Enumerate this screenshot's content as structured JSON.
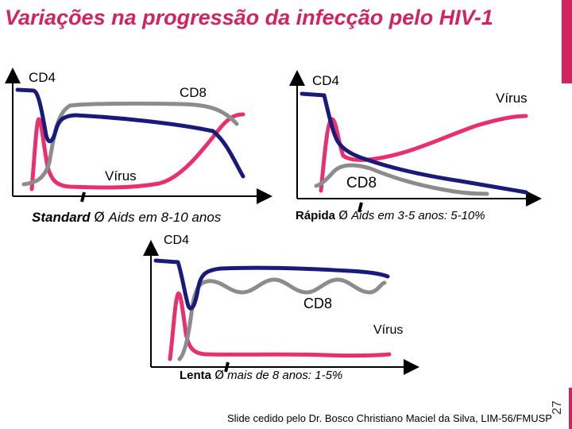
{
  "title": "Variações na progressão da infecção pelo HIV-1",
  "slide_number": "27",
  "panels": {
    "standard": {
      "labels": {
        "cd4": "CD4",
        "cd8": "CD8",
        "virus": "Vírus"
      },
      "caption_prefix": "Standard",
      "caption_arrow": "Ø",
      "caption_text": "Aids em 8-10 anos"
    },
    "rapid": {
      "labels": {
        "cd4": "CD4",
        "cd8": "CD8",
        "virus": "Vírus"
      },
      "caption_prefix": "Rápida",
      "caption_arrow": "Ø",
      "caption_text": "Aids em 3-5 anos: 5-10%"
    },
    "slow": {
      "labels": {
        "cd4": "CD4",
        "cd8": "CD8",
        "virus": "Vírus"
      },
      "caption_prefix": "Lenta",
      "caption_arrow": "Ø",
      "caption_text": "mais de 8 anos: 1-5%"
    }
  },
  "colors": {
    "cd4": "#1a1a7a",
    "cd8": "#8c8c8c",
    "virus": "#e8306e",
    "accent": "#d1245f"
  },
  "credit": "Slide cedido pelo Dr. Bosco Christiano Maciel da Silva, LIM-56/FMUSP"
}
